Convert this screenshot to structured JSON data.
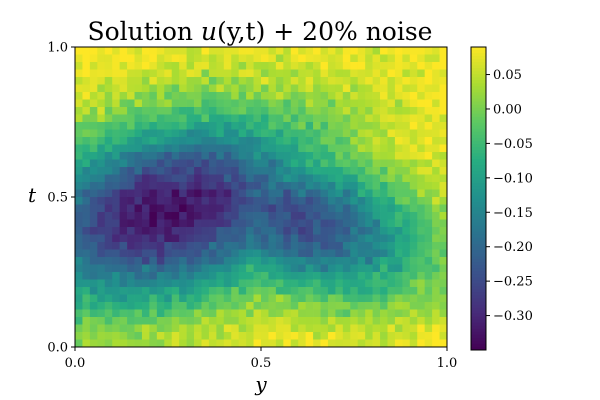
{
  "chart_data": {
    "type": "heatmap",
    "title": {
      "prefix": "Solution ",
      "func": "u",
      "args": "(y,t)",
      "suffix": " + 20% noise"
    },
    "xlabel": "y",
    "ylabel": "t",
    "x_range": [
      0,
      1
    ],
    "y_range": [
      0,
      1
    ],
    "x_ticks": [
      {
        "value": 0.0,
        "label": "0.0"
      },
      {
        "value": 0.5,
        "label": "0.5"
      },
      {
        "value": 1.0,
        "label": "1.0"
      }
    ],
    "y_ticks": [
      {
        "value": 0.0,
        "label": "0.0"
      },
      {
        "value": 0.5,
        "label": "0.5"
      },
      {
        "value": 1.0,
        "label": "1.0"
      }
    ],
    "grid_cols": 50,
    "grid_rows": 40,
    "value_range": [
      -0.35,
      0.09
    ],
    "colormap": "viridis",
    "colorbar_ticks": [
      {
        "value": 0.05,
        "label": "0.05"
      },
      {
        "value": 0.0,
        "label": "0.00"
      },
      {
        "value": -0.05,
        "label": "−0.05"
      },
      {
        "value": -0.1,
        "label": "−0.10"
      },
      {
        "value": -0.15,
        "label": "−0.15"
      },
      {
        "value": -0.2,
        "label": "−0.20"
      },
      {
        "value": -0.25,
        "label": "−0.25"
      },
      {
        "value": -0.3,
        "label": "−0.30"
      }
    ],
    "field": {
      "minimum": -0.33,
      "minimum_at": {
        "y": 0.25,
        "t": 0.45
      },
      "maximum": 0.09,
      "noise_fraction": 0.2
    }
  }
}
